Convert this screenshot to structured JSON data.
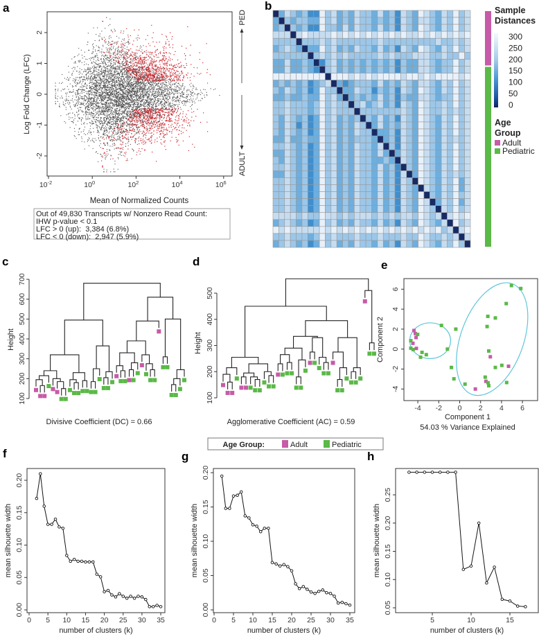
{
  "panel_labels": {
    "a": "a",
    "b": "b",
    "c": "c",
    "d": "d",
    "e": "e",
    "f": "f",
    "g": "g",
    "h": "h"
  },
  "colors": {
    "gray": "#4d4d4d",
    "red": "#d3222b",
    "adult": "#c65ba8",
    "pediatric": "#5ab947",
    "ellipse": "#5cc6d9"
  },
  "age_legend": {
    "title": "Age Group:",
    "adult": "Adult",
    "pediatric": "Pediatric"
  },
  "chart_data": [
    {
      "panel": "a",
      "type": "scatter",
      "xlabel": "Mean of Normalized Counts",
      "ylabel": "Log Fold Change (LFC)",
      "x_scale": "log10",
      "xlim_log10": [
        -2.06,
        6.36
      ],
      "ylim": [
        -2.65,
        2.67
      ],
      "x_ticks": [
        {
          "base": "10",
          "exp": "-2",
          "v": -2
        },
        {
          "base": "10",
          "exp": "0",
          "v": 0
        },
        {
          "base": "10",
          "exp": "2",
          "v": 2
        },
        {
          "base": "10",
          "exp": "4",
          "v": 4
        },
        {
          "base": "10",
          "exp": "6",
          "v": 6
        }
      ],
      "y_ticks": [
        "-2",
        "-1",
        "0",
        "1",
        "2"
      ],
      "lfc_clip": 2.5,
      "direction_labels": {
        "up": "PED",
        "down": "ADULT"
      },
      "summary": {
        "line1": "Out of 49,830 Transcripts w/ Nonzero Read Count:",
        "line2": "IHW p-value < 0.1",
        "line3": "LFC > 0 (up):  3,384 (6.8%)",
        "line4": "LFC < 0 (down):  2,947 (5.9%)"
      },
      "total_transcripts": 49830,
      "up": 3384,
      "up_pct": 6.8,
      "down": 2947,
      "down_pct": 5.9
    },
    {
      "panel": "b",
      "type": "heatmap",
      "legend_title_1": "Sample",
      "legend_title_2": "Distances",
      "scale_ticks": [
        "300",
        "250",
        "200",
        "150",
        "100",
        "50",
        "0"
      ],
      "level_values": [
        0,
        100,
        150,
        200,
        250,
        300
      ],
      "level_colors": [
        "#172a66",
        "#3f8fcf",
        "#6cafe0",
        "#9cc7e9",
        "#c6ddf1",
        "#e8f0f9"
      ],
      "annotation_title_1": "Age",
      "annotation_title_2": "Group",
      "groups": [
        {
          "label": "Adult",
          "code": "A"
        },
        {
          "label": "Pediatric",
          "code": "P"
        }
      ],
      "row_groups": "AAAAAAAAPPPPPPPPPPPPPPPPPPPPPPPPPP",
      "matrix_levels": [
        "0243231153423243324231432543243534",
        "2032332253423243323231432443243534",
        "2303231153324243324231432543243534",
        "4440454444545454545454544545454545",
        "3333033343433333334333333333433434",
        "2343202253423243324231432543243534",
        "3333330343434333334343334443343353",
        "2242232013423232323231322443233534",
        "2242232103423232323231322443233534",
        "5555555550555454545555455454555545",
        "2323231234021233324232432443243534",
        "3243231253302243313231432543243534",
        "2232232253420232324231322443233534",
        "3343332353433034234231432543343534",
        "3343332353433303333333432543343434",
        "3243231253423230324231432543243534",
        "3243131253423243024232432543243534",
        "3243231253423243302231432543243534",
        "2242232253423233320231432543243434",
        "3343231253423243324031432543243534",
        "2243231253423243324202432543243534",
        "3243231253423243322320432543243534",
        "3343231253423243324231032543243534",
        "2243231253423243324231402543243434",
        "3343231253423243324231430543243524",
        "3343231253423243324231432043243524",
        "3343231253423243324231432503243534",
        "3343231253423243324231432540243524",
        "3343231253423243324231432543043534",
        "4444343354434344434343443543404545",
        "2343231253423243324231432543240534",
        "5454444454545454545454545454534045",
        "3343332353433343334333433543343404",
        "2343231253423243324231432543243530"
      ]
    },
    {
      "panel": "c",
      "type": "dendrogram",
      "ylabel": "Height",
      "y_ticks": [
        "100",
        "200",
        "300",
        "400",
        "500",
        "600",
        "700"
      ],
      "ylim": [
        100,
        700
      ],
      "caption": "Divisive Coefficient (DC) = 0.66",
      "coefficient": 0.66,
      "tree": [
        680,
        [
          495,
          [
            320,
            [
              240,
              [
                215,
                [
                  195,
                  "A",
                  [
                    165,
                    "A",
                    "A"
                  ]
                ],
                "P"
              ],
              [
                200,
                "A",
                [
                  185,
                  "A",
                  [
                    150,
                    "P",
                    "P"
                  ]
                ]
              ]
            ],
            [
              230,
              [
                195,
                "P",
                [
                  180,
                  "P",
                  "P"
                ]
              ],
              [
                190,
                "P",
                "P"
              ]
            ]
          ],
          [
            365,
            [
              250,
              [
                185,
                "P",
                "P"
              ],
              "P"
            ],
            [
              235,
              [
                205,
                "P",
                "P"
              ],
              "P"
            ]
          ]
        ],
        [
          610,
          [
            490,
            [
              390,
              [
                330,
                [
                  265,
                  "A",
                  [
                    240,
                    "P",
                    "P"
                  ]
                ],
                [
                  280,
                  [
                    245,
                    "A",
                    "P"
                  ],
                  "P"
                ]
              ],
              [
                320,
                "A",
                [
                  275,
                  "P",
                  [
                    245,
                    "P",
                    "P"
                  ]
                ]
              ]
            ],
            "A"
          ],
          [
            500,
            [
              310,
              "P",
              "P"
            ],
            [
              245,
              [
                200,
                [
                  170,
                  "P",
                  "P"
                ],
                "P"
              ],
              "P"
            ]
          ]
        ]
      ]
    },
    {
      "panel": "d",
      "type": "dendrogram",
      "ylabel": "Height",
      "y_ticks": [
        "100",
        "200",
        "300",
        "400",
        "500"
      ],
      "ylim": [
        100,
        560
      ],
      "caption": "Agglomerative Coefficient (AC) = 0.59",
      "coefficient": 0.59,
      "tree": [
        555,
        [
          450,
          [
            255,
            [
              215,
              [
                190,
                "A",
                [
                  160,
                  "A",
                  "A"
                ]
              ],
              "P"
            ],
            [
              230,
              [
                195,
                [
                  180,
                  "A",
                  "A"
                ],
                [
                  180,
                  "P",
                  [
                    170,
                    "P",
                    "P"
                  ]
                ]
              ],
              [
                200,
                "P",
                [
                  185,
                  "P",
                  "P"
                ]
              ]
            ]
          ],
          [
            395,
            [
              335,
              [
                290,
                [
                  265,
                  [
                    230,
                    "A",
                    "P"
                  ],
                  [
                    235,
                    "P",
                    "P"
                  ]
                ],
                [
                  245,
                  [
                    180,
                    "P",
                    "P"
                  ],
                  "P"
                ]
              ],
              [
                330,
                [
                  275,
                  "A",
                  "P"
                ],
                [
                  255,
                  "P",
                  [
                    235,
                    "P",
                    "P"
                  ]
                ]
              ]
            ],
            [
              330,
              [
                275,
                "A",
                [
                  215,
                  [
                    170,
                    "P",
                    "P"
                  ],
                  "P"
                ]
              ],
              [
                215,
                [
                  200,
                  "P",
                  "P"
                ],
                "P"
              ]
            ]
          ]
        ],
        [
          510,
          "A",
          [
            310,
            "P",
            "P"
          ]
        ]
      ]
    },
    {
      "panel": "e",
      "type": "scatter",
      "xlabel": "Component 1",
      "ylabel": "Component 2",
      "subtitle": "54.03 % Variance Explained",
      "x_ticks": [
        "-4",
        "-2",
        "0",
        "2",
        "4",
        "6"
      ],
      "y_ticks": [
        "-4",
        "-2",
        "0",
        "2",
        "4",
        "6"
      ],
      "xlim": [
        -5.35,
        7.4
      ],
      "ylim": [
        -5.1,
        7.1
      ],
      "points": [
        {
          "x": 4.95,
          "y": 6.37,
          "g": "P"
        },
        {
          "x": 5.84,
          "y": 6.07,
          "g": "P"
        },
        {
          "x": 4.45,
          "y": 4.56,
          "g": "P"
        },
        {
          "x": 2.69,
          "y": 3.28,
          "g": "P"
        },
        {
          "x": 3.41,
          "y": 3.12,
          "g": "P"
        },
        {
          "x": 2.62,
          "y": 2.26,
          "g": "P"
        },
        {
          "x": -1.74,
          "y": 2.37,
          "g": "P"
        },
        {
          "x": -0.37,
          "y": 2.0,
          "g": "P"
        },
        {
          "x": -4.37,
          "y": 1.86,
          "g": "A"
        },
        {
          "x": -4.24,
          "y": 1.56,
          "g": "A"
        },
        {
          "x": -4.02,
          "y": 1.47,
          "g": "P"
        },
        {
          "x": -4.17,
          "y": 1.16,
          "g": "A"
        },
        {
          "x": -4.67,
          "y": 0.84,
          "g": "P"
        },
        {
          "x": -4.47,
          "y": 0.58,
          "g": "A"
        },
        {
          "x": -4.67,
          "y": 0.09,
          "g": "P"
        },
        {
          "x": -4.45,
          "y": -0.05,
          "g": "P"
        },
        {
          "x": -4.14,
          "y": 0.07,
          "g": "A"
        },
        {
          "x": -3.6,
          "y": -0.33,
          "g": "P"
        },
        {
          "x": -3.19,
          "y": -0.56,
          "g": "P"
        },
        {
          "x": -3.74,
          "y": -0.81,
          "g": "P"
        },
        {
          "x": -1.17,
          "y": 0.0,
          "g": "P"
        },
        {
          "x": 2.78,
          "y": -0.19,
          "g": "P"
        },
        {
          "x": 2.93,
          "y": -0.77,
          "g": "A"
        },
        {
          "x": -0.79,
          "y": -1.84,
          "g": "P"
        },
        {
          "x": 3.41,
          "y": -1.84,
          "g": "P"
        },
        {
          "x": 4.03,
          "y": -1.63,
          "g": "P"
        },
        {
          "x": 4.67,
          "y": -1.72,
          "g": "A"
        },
        {
          "x": -0.55,
          "y": -2.98,
          "g": "P"
        },
        {
          "x": 2.44,
          "y": -2.81,
          "g": "P"
        },
        {
          "x": 2.51,
          "y": -3.23,
          "g": "A"
        },
        {
          "x": 2.71,
          "y": -3.37,
          "g": "P"
        },
        {
          "x": 2.78,
          "y": -3.67,
          "g": "P"
        },
        {
          "x": 0.51,
          "y": -3.51,
          "g": "P"
        },
        {
          "x": 1.5,
          "y": -4.0,
          "g": "A"
        },
        {
          "x": 4.49,
          "y": -3.35,
          "g": "P"
        }
      ],
      "clusters": [
        {
          "cx": -2.82,
          "cy": 0.84,
          "rx": 1.95,
          "ry": 1.79,
          "rotation_deg": 0
        },
        {
          "cx": 3.1,
          "cy": 1.0,
          "rx": 3.0,
          "ry": 5.9,
          "rotation_deg": 20
        }
      ]
    },
    {
      "panel": "f",
      "type": "line",
      "xlabel": "number of clusters (k)",
      "ylabel": "mean silhouette width",
      "x_ticks": [
        "0",
        "5",
        "10",
        "15",
        "20",
        "25",
        "30",
        "35"
      ],
      "y_ticks": [
        "0.00",
        "0.05",
        "0.10",
        "0.15",
        "0.20"
      ],
      "k": [
        2,
        3,
        4,
        5,
        6,
        7,
        8,
        9,
        10,
        11,
        12,
        13,
        14,
        15,
        16,
        17,
        18,
        19,
        20,
        21,
        22,
        23,
        24,
        25,
        26,
        27,
        28,
        29,
        30,
        31,
        32,
        33,
        34,
        35
      ],
      "values": [
        0.172,
        0.21,
        0.16,
        0.132,
        0.132,
        0.14,
        0.128,
        0.126,
        0.084,
        0.075,
        0.078,
        0.075,
        0.075,
        0.074,
        0.074,
        0.074,
        0.055,
        0.051,
        0.028,
        0.03,
        0.023,
        0.02,
        0.025,
        0.021,
        0.018,
        0.021,
        0.018,
        0.021,
        0.02,
        0.016,
        0.005,
        0.005,
        0.007,
        0.005
      ]
    },
    {
      "panel": "g",
      "type": "line",
      "xlabel": "number of clusters (k)",
      "ylabel": "mean silhouette width",
      "x_ticks": [
        "0",
        "5",
        "10",
        "15",
        "20",
        "25",
        "30",
        "35"
      ],
      "y_ticks": [
        "0.00",
        "0.05",
        "0.10",
        "0.15",
        "0.20"
      ],
      "k": [
        2,
        3,
        4,
        5,
        6,
        7,
        8,
        9,
        10,
        11,
        12,
        13,
        14,
        15,
        16,
        17,
        18,
        19,
        20,
        21,
        22,
        23,
        24,
        25,
        26,
        27,
        28,
        29,
        30,
        31,
        32,
        33,
        34,
        35
      ],
      "values": [
        0.195,
        0.148,
        0.148,
        0.166,
        0.167,
        0.172,
        0.137,
        0.134,
        0.124,
        0.122,
        0.114,
        0.119,
        0.119,
        0.069,
        0.067,
        0.064,
        0.066,
        0.063,
        0.057,
        0.038,
        0.031,
        0.034,
        0.03,
        0.026,
        0.024,
        0.027,
        0.029,
        0.025,
        0.024,
        0.02,
        0.01,
        0.011,
        0.009,
        0.007
      ]
    },
    {
      "panel": "h",
      "type": "line",
      "xlabel": "number of clusters (k)",
      "ylabel": "mean silhouette width",
      "x_ticks": [
        "5",
        "10",
        "15"
      ],
      "y_ticks": [
        "0.05",
        "0.10",
        "0.15",
        "0.20",
        "0.25"
      ],
      "k": [
        2,
        3,
        4,
        5,
        6,
        7,
        8,
        9,
        10,
        11,
        12,
        13,
        14,
        15,
        16,
        17
      ],
      "values": [
        0.29,
        0.29,
        0.29,
        0.29,
        0.29,
        0.29,
        0.29,
        0.118,
        0.124,
        0.2,
        0.094,
        0.122,
        0.065,
        0.062,
        0.053,
        0.052
      ]
    }
  ]
}
